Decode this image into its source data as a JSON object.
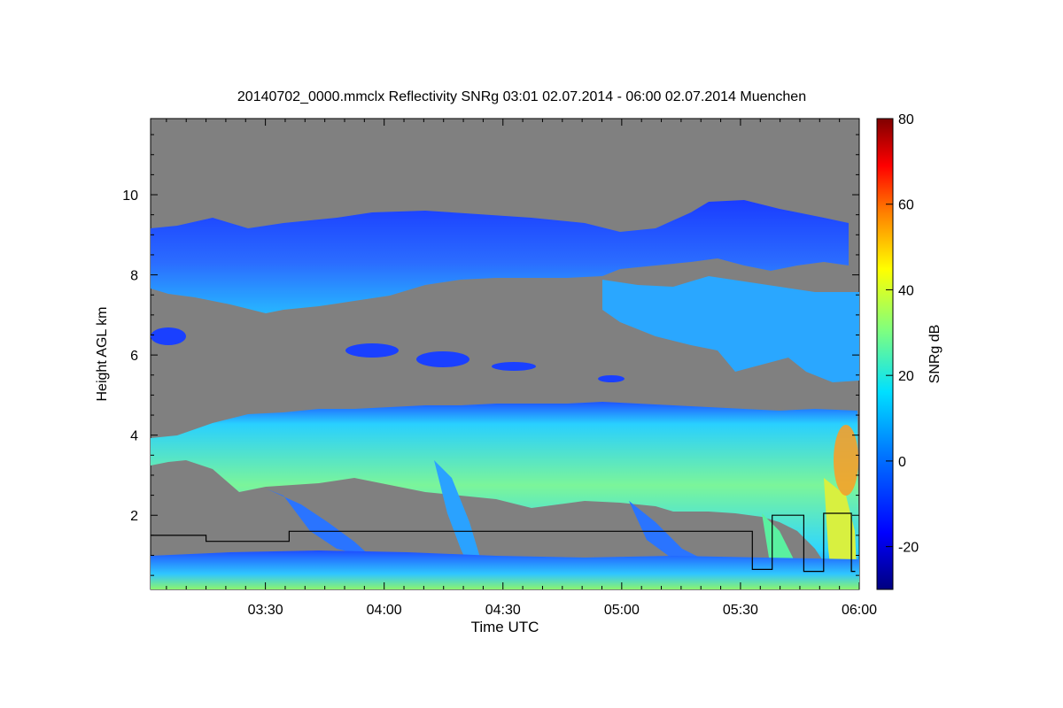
{
  "chart_data": {
    "type": "heatmap",
    "title": "20140702_0000.mmclx Reflectivity SNRg   03:01 02.07.2014 - 06:00 02.07.2014 Muenchen",
    "xlabel": "Time UTC",
    "ylabel": "Height AGL km",
    "colorbar_label": "SNRg dB",
    "x_range_minutes_utc": [
      181,
      360
    ],
    "y_range_km": [
      0.15,
      11.9
    ],
    "x_ticks": [
      {
        "label": "03:30",
        "minutes": 210
      },
      {
        "label": "04:00",
        "minutes": 240
      },
      {
        "label": "04:30",
        "minutes": 270
      },
      {
        "label": "05:00",
        "minutes": 300
      },
      {
        "label": "05:30",
        "minutes": 330
      },
      {
        "label": "06:00",
        "minutes": 360
      }
    ],
    "y_ticks": [
      {
        "label": "2",
        "value": 2
      },
      {
        "label": "4",
        "value": 4
      },
      {
        "label": "6",
        "value": 6
      },
      {
        "label": "8",
        "value": 8
      },
      {
        "label": "10",
        "value": 10
      }
    ],
    "colorbar_range_db": [
      -30,
      80
    ],
    "colorbar_ticks": [
      {
        "label": "-20",
        "value": -20
      },
      {
        "label": "0",
        "value": 0
      },
      {
        "label": "20",
        "value": 20
      },
      {
        "label": "40",
        "value": 40
      },
      {
        "label": "60",
        "value": 60
      },
      {
        "label": "80",
        "value": 80
      }
    ],
    "background_color": "#808080",
    "colormap": [
      "#00007f",
      "#0000ff",
      "#0080ff",
      "#00e0ff",
      "#7fff7f",
      "#ffff00",
      "#ff8000",
      "#ff0000",
      "#800000"
    ],
    "layers": [
      {
        "name": "upper-cirrus",
        "x_start": 181,
        "x_end": 359,
        "base_km": 7.8,
        "top_km": 9.3,
        "snr_db": -8
      },
      {
        "name": "mid-cloud",
        "x_start": 181,
        "x_end": 360,
        "base_km": 2.6,
        "top_km": 4.6,
        "snr_db": 15
      },
      {
        "name": "boundary-layer",
        "x_start": 181,
        "x_end": 360,
        "base_km": 0.15,
        "top_km": 0.9,
        "snr_db": 5
      }
    ],
    "overlay_line_km": [
      {
        "x": 181,
        "y": 1.5
      },
      {
        "x": 195,
        "y": 1.5
      },
      {
        "x": 195,
        "y": 1.35
      },
      {
        "x": 216,
        "y": 1.35
      },
      {
        "x": 216,
        "y": 1.6
      },
      {
        "x": 330,
        "y": 1.6
      },
      {
        "x": 333,
        "y": 1.6
      },
      {
        "x": 333,
        "y": 0.65
      },
      {
        "x": 338,
        "y": 0.65
      },
      {
        "x": 338,
        "y": 2.0
      },
      {
        "x": 346,
        "y": 2.0
      },
      {
        "x": 346,
        "y": 0.6
      },
      {
        "x": 351,
        "y": 0.6
      },
      {
        "x": 351,
        "y": 2.05
      },
      {
        "x": 358,
        "y": 2.05
      },
      {
        "x": 358,
        "y": 0.6
      },
      {
        "x": 359,
        "y": 0.6
      }
    ]
  }
}
